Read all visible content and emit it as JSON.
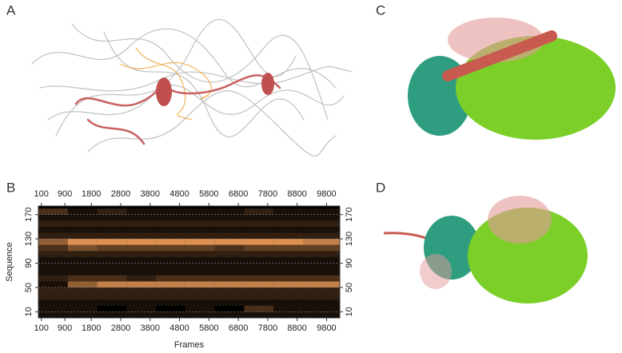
{
  "panels": {
    "a": "A",
    "b": "B",
    "c": "C",
    "d": "D"
  },
  "chart_data": {
    "type": "heatmap",
    "xlabel": "Frames",
    "ylabel": "Sequence",
    "color": "#f5a05a",
    "background": "#000000",
    "grid": true,
    "xlim": [
      0,
      10250
    ],
    "xticks": [
      100,
      900,
      1800,
      2800,
      3800,
      4800,
      5800,
      6800,
      7800,
      8800,
      9800
    ],
    "ylim": [
      0,
      184
    ],
    "yticks": [
      10,
      50,
      90,
      130,
      170
    ],
    "x_bins": [
      0,
      1000,
      2000,
      3000,
      4000,
      5000,
      6000,
      7000,
      8000,
      9000,
      10250
    ],
    "y_bins": [
      0,
      10,
      20,
      30,
      40,
      50,
      60,
      70,
      80,
      90,
      100,
      110,
      120,
      130,
      140,
      150,
      160,
      170,
      180
    ],
    "values": [
      [
        0.1,
        0.1,
        0.1,
        0.1,
        0.1,
        0.1,
        0.1,
        0.1,
        0.1,
        0.1
      ],
      [
        0.1,
        0.1,
        0,
        0.1,
        0,
        0.1,
        0,
        0.3,
        0.1,
        0.1
      ],
      [
        0.1,
        0.1,
        0.1,
        0.1,
        0.1,
        0.1,
        0.1,
        0.1,
        0.1,
        0.1
      ],
      [
        0.2,
        0.2,
        0.2,
        0.2,
        0.2,
        0.2,
        0.2,
        0.2,
        0.2,
        0.2
      ],
      [
        0.2,
        0.2,
        0.2,
        0.2,
        0.2,
        0.2,
        0.2,
        0.2,
        0.2,
        0.2
      ],
      [
        0.1,
        0.6,
        0.8,
        0.8,
        0.8,
        0.8,
        0.8,
        0.8,
        0.8,
        0.8
      ],
      [
        0.2,
        0.3,
        0.3,
        0.2,
        0.3,
        0.3,
        0.3,
        0.3,
        0.3,
        0.3
      ],
      [
        0.1,
        0.1,
        0.1,
        0.1,
        0.1,
        0.1,
        0.1,
        0.1,
        0.1,
        0.1
      ],
      [
        0.1,
        0.1,
        0.1,
        0.1,
        0.1,
        0.1,
        0.1,
        0.1,
        0.1,
        0.1
      ],
      [
        0.1,
        0.1,
        0.1,
        0.1,
        0.1,
        0.1,
        0.1,
        0.1,
        0.1,
        0.1
      ],
      [
        0.2,
        0.2,
        0.2,
        0.2,
        0.2,
        0.2,
        0.2,
        0.2,
        0.2,
        0.2
      ],
      [
        0.3,
        0.5,
        0.4,
        0.4,
        0.4,
        0.4,
        0.3,
        0.4,
        0.4,
        0.4
      ],
      [
        0.6,
        0.9,
        0.9,
        0.9,
        0.9,
        0.9,
        0.9,
        0.9,
        0.9,
        0.8
      ],
      [
        0.2,
        0.2,
        0.2,
        0.2,
        0.2,
        0.2,
        0.2,
        0.2,
        0.2,
        0.2
      ],
      [
        0.1,
        0.1,
        0.1,
        0.1,
        0.1,
        0.1,
        0.1,
        0.1,
        0.1,
        0.1
      ],
      [
        0.2,
        0.2,
        0.2,
        0.2,
        0.2,
        0.2,
        0.2,
        0.2,
        0.2,
        0.2
      ],
      [
        0.1,
        0.1,
        0.1,
        0.1,
        0.1,
        0.1,
        0.1,
        0.1,
        0.1,
        0.1
      ],
      [
        0.3,
        0.1,
        0.2,
        0.1,
        0.1,
        0.1,
        0.1,
        0.2,
        0.1,
        0.1
      ]
    ]
  }
}
